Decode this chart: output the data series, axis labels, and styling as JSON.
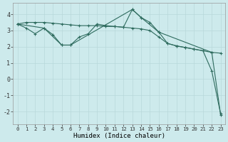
{
  "line1_x": [
    0,
    1,
    2,
    3,
    4,
    5,
    6,
    7,
    8,
    9,
    10,
    11,
    12,
    13,
    14,
    15,
    16,
    17,
    18,
    19,
    20,
    21,
    22,
    23
  ],
  "line1_y": [
    3.4,
    3.5,
    3.5,
    3.5,
    3.45,
    3.4,
    3.35,
    3.3,
    3.3,
    3.3,
    3.25,
    3.25,
    3.2,
    3.15,
    3.1,
    3.0,
    2.6,
    2.2,
    2.05,
    1.95,
    1.85,
    1.75,
    1.65,
    1.6
  ],
  "line2_x": [
    0,
    1,
    2,
    3,
    4,
    5,
    6,
    7,
    8,
    9,
    10,
    11,
    12,
    13,
    14,
    15,
    16,
    17,
    18,
    19,
    20,
    21,
    22,
    23
  ],
  "line2_y": [
    3.4,
    3.15,
    2.8,
    3.15,
    2.75,
    2.1,
    2.1,
    2.6,
    2.8,
    3.4,
    3.3,
    3.25,
    3.2,
    4.3,
    3.8,
    3.5,
    2.9,
    2.2,
    2.05,
    1.95,
    1.85,
    1.75,
    0.5,
    -2.15
  ],
  "line3_x": [
    0,
    3,
    5,
    6,
    13,
    14,
    16,
    22,
    23
  ],
  "line3_y": [
    3.4,
    3.15,
    2.1,
    2.1,
    4.3,
    3.8,
    2.9,
    1.65,
    -2.2
  ],
  "line_color": "#2e6b5e",
  "bg_color": "#cdeaec",
  "grid_color": "#b8d8da",
  "xlabel": "Humidex (Indice chaleur)",
  "ylim": [
    -2.8,
    4.7
  ],
  "xlim": [
    -0.5,
    23.5
  ],
  "yticks": [
    -2,
    -1,
    0,
    1,
    2,
    3,
    4
  ],
  "xticks": [
    0,
    1,
    2,
    3,
    4,
    5,
    6,
    7,
    8,
    9,
    10,
    11,
    12,
    13,
    14,
    15,
    16,
    17,
    18,
    19,
    20,
    21,
    22,
    23
  ]
}
